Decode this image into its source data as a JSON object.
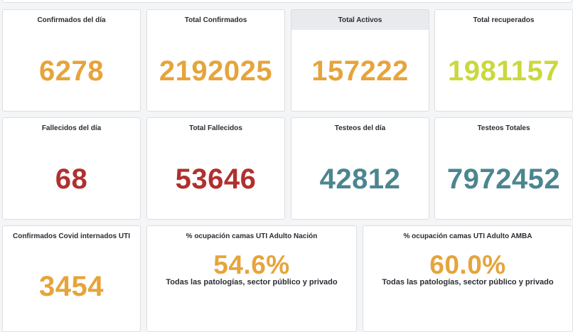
{
  "colors": {
    "orange": "#e6a43b",
    "lime": "#cad83e",
    "red": "#b0302e",
    "teal": "#4c8590"
  },
  "panels": [
    {
      "title": "Confirmados del día",
      "value": "6278",
      "color": "orange"
    },
    {
      "title": "Total Confirmados",
      "value": "2192025",
      "color": "orange"
    },
    {
      "title": "Total Activos",
      "value": "157222",
      "color": "orange"
    },
    {
      "title": "Total recuperados",
      "value": "1981157",
      "color": "lime"
    },
    {
      "title": "Fallecidos del día",
      "value": "68",
      "color": "red"
    },
    {
      "title": "Total Fallecidos",
      "value": "53646",
      "color": "red"
    },
    {
      "title": "Testeos del día",
      "value": "42812",
      "color": "teal"
    },
    {
      "title": "Testeos Totales",
      "value": "7972452",
      "color": "teal"
    },
    {
      "title": "Confirmados Covid internados UTI",
      "value": "3454",
      "color": "orange"
    },
    {
      "title": "% ocupación camas UTI Adulto Nación",
      "value": "54.6%",
      "subtitle": "Todas las patologías, sector público y privado",
      "color": "orange"
    },
    {
      "title": "% ocupación camas UTI Adulto AMBA",
      "value": "60.0%",
      "subtitle": "Todas las patologías, sector público y privado",
      "color": "orange"
    }
  ]
}
